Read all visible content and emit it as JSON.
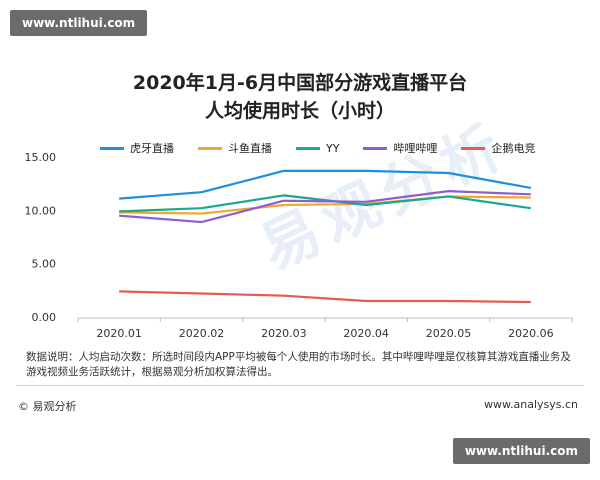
{
  "badge_top": "www.ntlihui.com",
  "badge_bottom": "www.ntlihui.com",
  "title_line1": "2020年1月-6月中国部分游戏直播平台",
  "title_line2": "人均使用时长（小时）",
  "note": "数据说明：人均启动次数：所选时间段内APP平均被每个人使用的市场时长。其中哔哩哔哩是仅核算其游戏直播业务及游戏视频业务活跃统计，根据易观分析加权算法得出。",
  "footer_left": "© 易观分析",
  "footer_right": "www.analysys.cn",
  "watermark": "易观分析",
  "chart_data": {
    "type": "line",
    "title": "2020年1月-6月中国部分游戏直播平台 人均使用时长（小时）",
    "xlabel": "",
    "ylabel": "",
    "categories": [
      "2020.01",
      "2020.02",
      "2020.03",
      "2020.04",
      "2020.05",
      "2020.06"
    ],
    "ylim": [
      0,
      15
    ],
    "yticks": [
      "0.00",
      "5.00",
      "10.00",
      "15.00"
    ],
    "legend_position": "top",
    "grid": false,
    "series": [
      {
        "name": "虎牙直播",
        "color": "#1f8ee0",
        "values": [
          11.1,
          11.7,
          13.7,
          13.7,
          13.5,
          12.1
        ]
      },
      {
        "name": "斗鱼直播",
        "color": "#f0a92c",
        "values": [
          9.8,
          9.7,
          10.5,
          10.6,
          11.3,
          11.2
        ]
      },
      {
        "name": "YY",
        "color": "#1ba68e",
        "values": [
          9.9,
          10.2,
          11.4,
          10.5,
          11.3,
          10.2
        ]
      },
      {
        "name": "哔哩哔哩",
        "color": "#8b5fd1",
        "values": [
          9.5,
          8.9,
          10.9,
          10.8,
          11.8,
          11.5
        ]
      },
      {
        "name": "企鹅电竞",
        "color": "#e25c4f",
        "values": [
          2.4,
          2.2,
          2.0,
          1.5,
          1.5,
          1.4
        ]
      }
    ]
  }
}
